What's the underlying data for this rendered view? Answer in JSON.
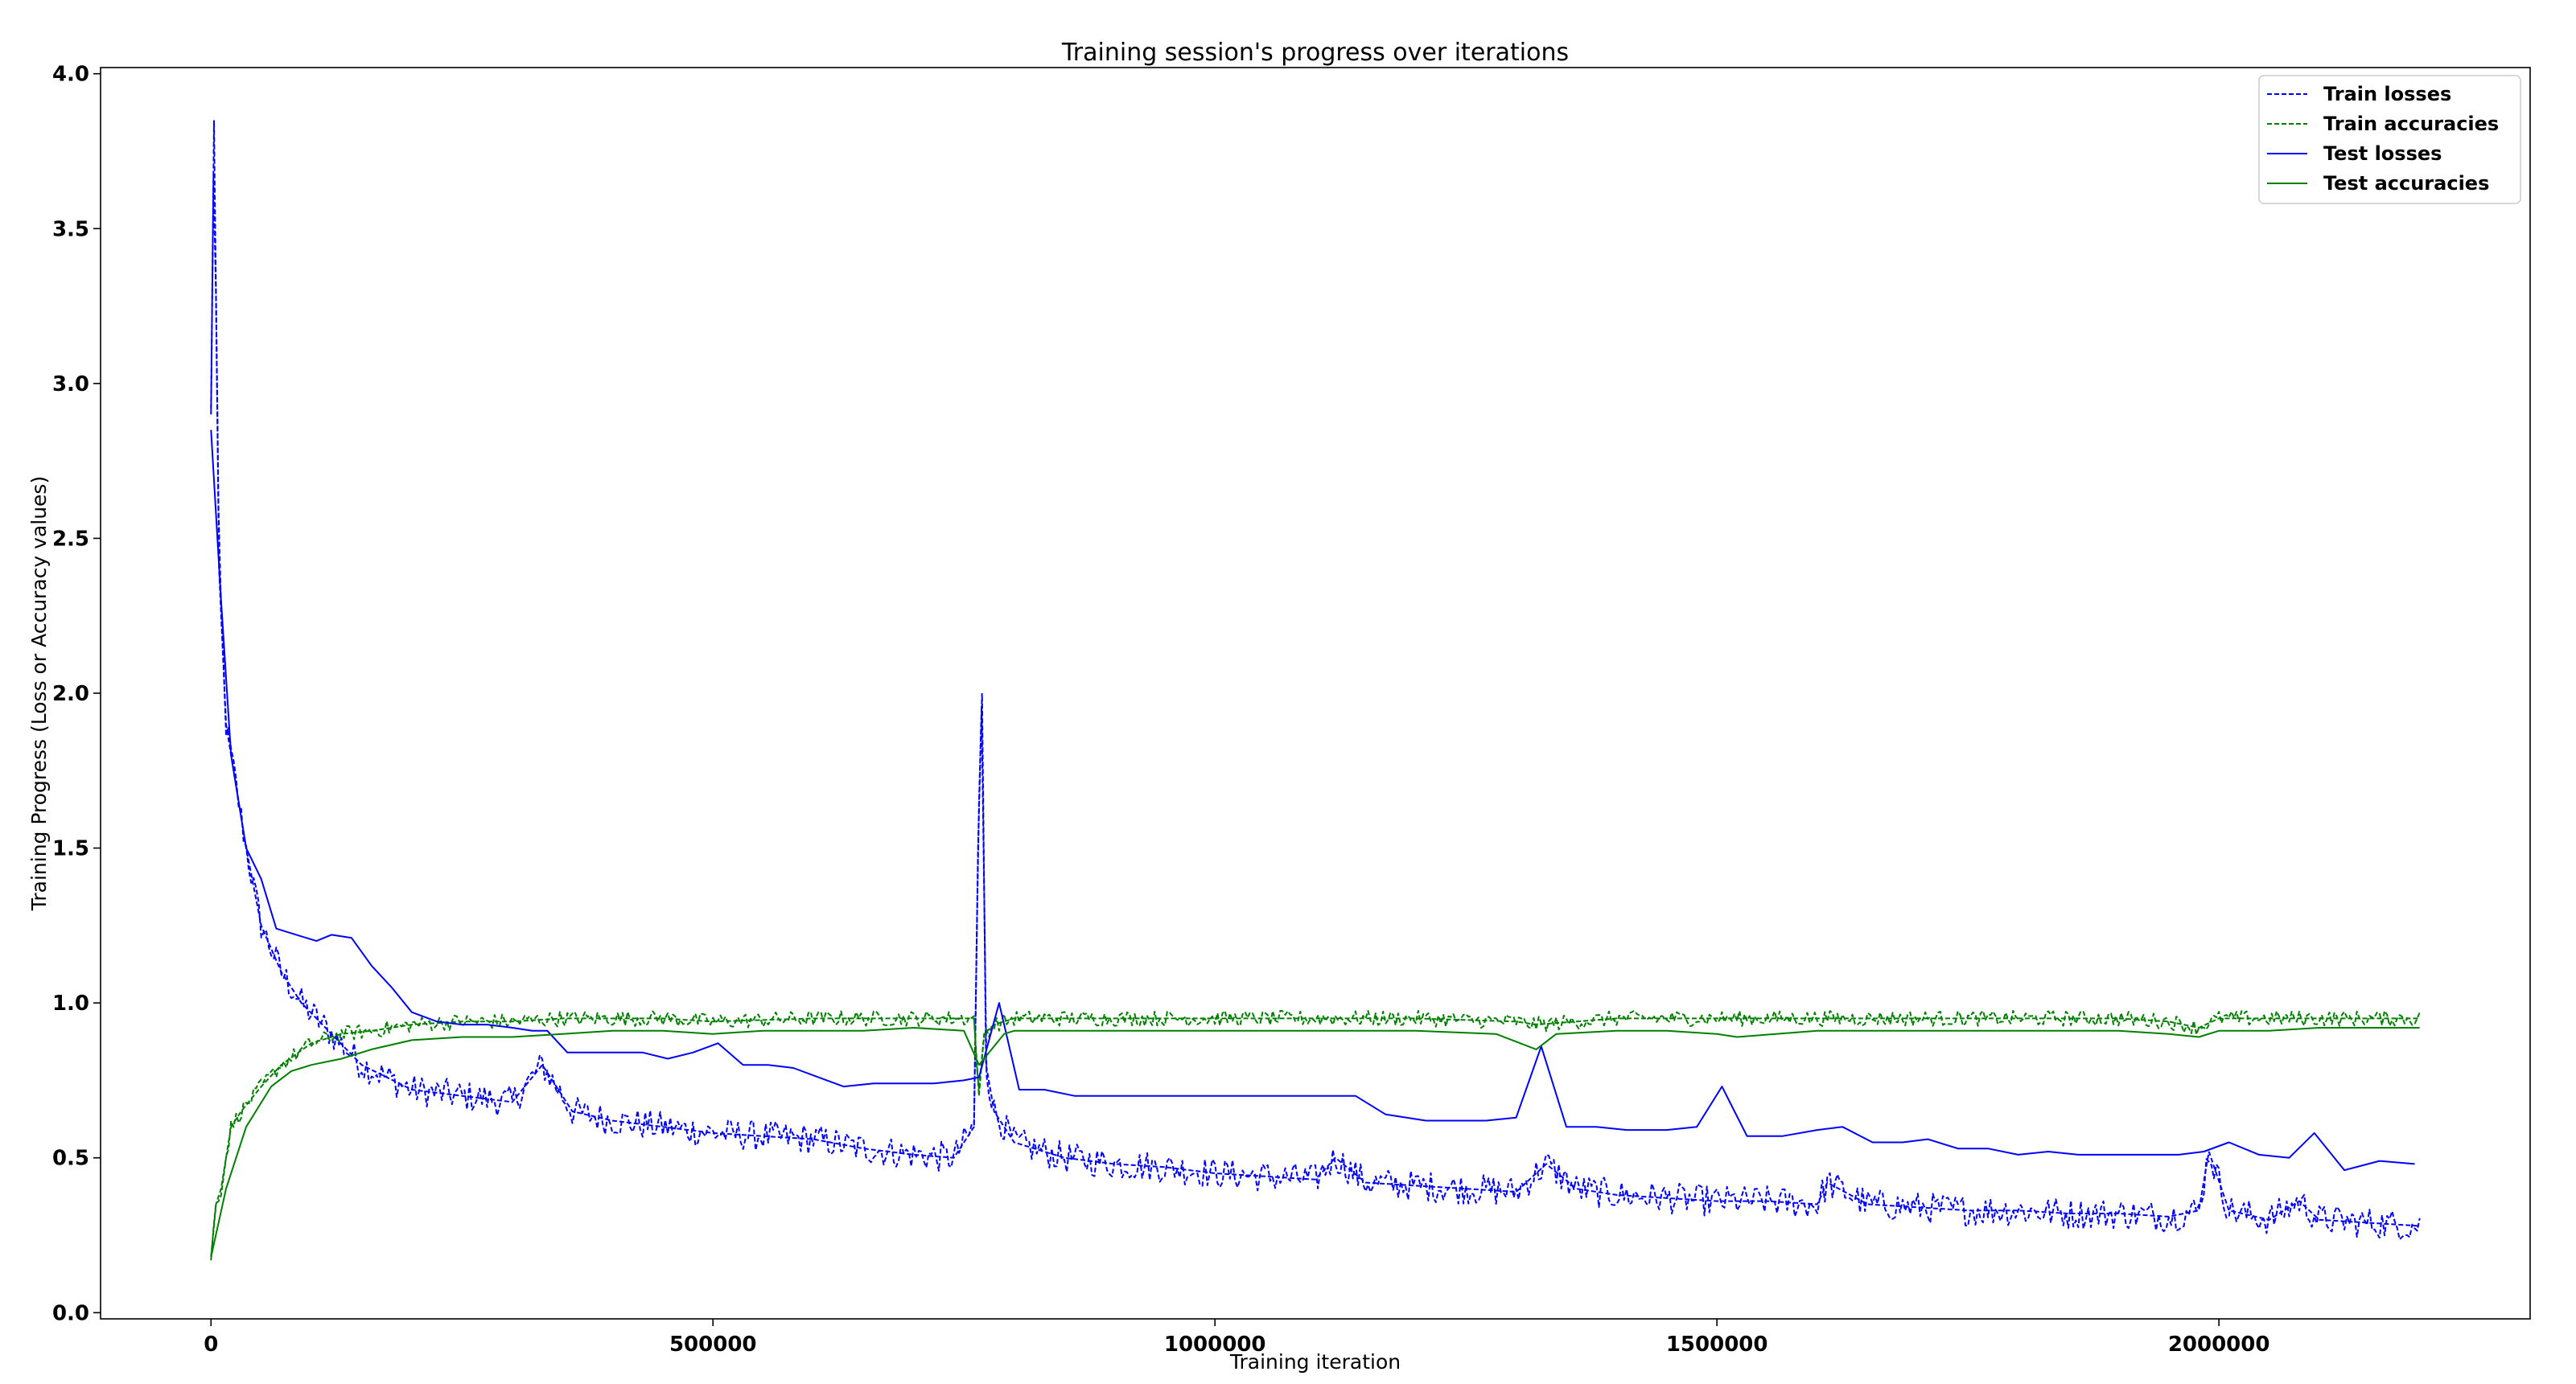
{
  "chart_data": {
    "type": "line",
    "title": "Training session's progress over iterations",
    "xlabel": "Training iteration",
    "ylabel": "Training Progress (Loss or Accuracy values)",
    "xlim": [
      -110000,
      2310000
    ],
    "ylim": [
      -0.02,
      4.02
    ],
    "xticks": [
      0,
      500000,
      1000000,
      1500000,
      2000000
    ],
    "yticks": [
      0.0,
      0.5,
      1.0,
      1.5,
      2.0,
      2.5,
      3.0,
      3.5,
      4.0
    ],
    "legend": "top-right",
    "grid": false,
    "series": [
      {
        "name": "Train losses",
        "color": "#0000ff",
        "style": "dashed",
        "jitter": 0.05,
        "x": [
          0,
          3000,
          8000,
          15000,
          25000,
          35000,
          50000,
          70000,
          90000,
          120000,
          150000,
          200000,
          250000,
          300000,
          330000,
          360000,
          400000,
          450000,
          500000,
          550000,
          600000,
          650000,
          700000,
          740000,
          760000,
          764000,
          768000,
          772000,
          780000,
          800000,
          850000,
          900000,
          950000,
          1000000,
          1050000,
          1100000,
          1120000,
          1150000,
          1200000,
          1250000,
          1300000,
          1330000,
          1360000,
          1400000,
          1450000,
          1500000,
          1550000,
          1600000,
          1610000,
          1650000,
          1700000,
          1750000,
          1800000,
          1850000,
          1900000,
          1950000,
          1980000,
          1990000,
          2010000,
          2050000,
          2080000,
          2100000,
          2150000,
          2200000
        ],
        "y": [
          2.9,
          3.85,
          2.4,
          1.9,
          1.7,
          1.5,
          1.25,
          1.1,
          1.0,
          0.9,
          0.8,
          0.72,
          0.7,
          0.68,
          0.8,
          0.65,
          0.62,
          0.6,
          0.58,
          0.57,
          0.56,
          0.53,
          0.51,
          0.5,
          0.6,
          1.5,
          2.0,
          0.8,
          0.65,
          0.55,
          0.5,
          0.48,
          0.47,
          0.45,
          0.44,
          0.43,
          0.5,
          0.42,
          0.41,
          0.4,
          0.39,
          0.48,
          0.4,
          0.38,
          0.37,
          0.36,
          0.36,
          0.35,
          0.42,
          0.35,
          0.34,
          0.33,
          0.33,
          0.32,
          0.32,
          0.31,
          0.33,
          0.52,
          0.33,
          0.3,
          0.36,
          0.3,
          0.29,
          0.28
        ]
      },
      {
        "name": "Train accuracies",
        "color": "#008000",
        "style": "dashed",
        "jitter": 0.025,
        "x": [
          0,
          5000,
          10000,
          20000,
          30000,
          50000,
          70000,
          100000,
          130000,
          160000,
          200000,
          250000,
          300000,
          350000,
          400000,
          450000,
          500000,
          600000,
          700000,
          760000,
          765000,
          770000,
          780000,
          800000,
          900000,
          1000000,
          1100000,
          1200000,
          1300000,
          1320000,
          1400000,
          1500000,
          1600000,
          1700000,
          1800000,
          1900000,
          1950000,
          1980000,
          2000000,
          2100000,
          2200000
        ],
        "y": [
          0.18,
          0.35,
          0.4,
          0.6,
          0.65,
          0.73,
          0.8,
          0.87,
          0.9,
          0.91,
          0.93,
          0.94,
          0.94,
          0.95,
          0.95,
          0.95,
          0.94,
          0.95,
          0.95,
          0.95,
          0.7,
          0.9,
          0.93,
          0.95,
          0.95,
          0.95,
          0.95,
          0.95,
          0.94,
          0.93,
          0.95,
          0.95,
          0.95,
          0.95,
          0.95,
          0.95,
          0.94,
          0.92,
          0.95,
          0.95,
          0.95
        ]
      },
      {
        "name": "Test losses",
        "color": "#0000ff",
        "style": "solid",
        "jitter": 0,
        "x": [
          0,
          10000,
          20000,
          35000,
          50000,
          65000,
          85000,
          105000,
          120000,
          140000,
          160000,
          180000,
          200000,
          225000,
          250000,
          275000,
          300000,
          320000,
          335000,
          355000,
          380000,
          405000,
          430000,
          455000,
          480000,
          505000,
          530000,
          555000,
          580000,
          605000,
          630000,
          660000,
          690000,
          720000,
          750000,
          765000,
          785000,
          805000,
          830000,
          860000,
          890000,
          930000,
          970000,
          1010000,
          1060000,
          1110000,
          1140000,
          1170000,
          1210000,
          1240000,
          1270000,
          1300000,
          1325000,
          1350000,
          1380000,
          1410000,
          1450000,
          1480000,
          1505000,
          1530000,
          1565000,
          1600000,
          1625000,
          1655000,
          1685000,
          1710000,
          1740000,
          1770000,
          1800000,
          1830000,
          1860000,
          1890000,
          1925000,
          1960000,
          1985000,
          2010000,
          2040000,
          2070000,
          2095000,
          2125000,
          2160000,
          2195000
        ],
        "y": [
          2.85,
          2.3,
          1.8,
          1.5,
          1.4,
          1.24,
          1.22,
          1.2,
          1.22,
          1.21,
          1.12,
          1.05,
          0.97,
          0.94,
          0.93,
          0.93,
          0.92,
          0.91,
          0.91,
          0.84,
          0.84,
          0.84,
          0.84,
          0.82,
          0.84,
          0.87,
          0.8,
          0.8,
          0.79,
          0.76,
          0.73,
          0.74,
          0.74,
          0.74,
          0.75,
          0.76,
          1.0,
          0.72,
          0.72,
          0.7,
          0.7,
          0.7,
          0.7,
          0.7,
          0.7,
          0.7,
          0.7,
          0.64,
          0.62,
          0.62,
          0.62,
          0.63,
          0.86,
          0.6,
          0.6,
          0.59,
          0.59,
          0.6,
          0.73,
          0.57,
          0.57,
          0.59,
          0.6,
          0.55,
          0.55,
          0.56,
          0.53,
          0.53,
          0.51,
          0.52,
          0.51,
          0.51,
          0.51,
          0.51,
          0.52,
          0.55,
          0.51,
          0.5,
          0.58,
          0.46,
          0.49,
          0.48
        ]
      },
      {
        "name": "Test accuracies",
        "color": "#008000",
        "style": "solid",
        "jitter": 0,
        "x": [
          0,
          15000,
          35000,
          60000,
          80000,
          100000,
          130000,
          160000,
          200000,
          250000,
          300000,
          350000,
          400000,
          450000,
          500000,
          550000,
          600000,
          650000,
          700000,
          750000,
          765000,
          790000,
          800000,
          850000,
          900000,
          1000000,
          1100000,
          1200000,
          1280000,
          1320000,
          1340000,
          1400000,
          1450000,
          1500000,
          1520000,
          1600000,
          1700000,
          1800000,
          1900000,
          1950000,
          1980000,
          2000000,
          2050000,
          2100000,
          2200000
        ],
        "y": [
          0.18,
          0.4,
          0.6,
          0.73,
          0.78,
          0.8,
          0.82,
          0.85,
          0.88,
          0.89,
          0.89,
          0.9,
          0.91,
          0.91,
          0.9,
          0.91,
          0.91,
          0.91,
          0.92,
          0.91,
          0.8,
          0.9,
          0.91,
          0.91,
          0.91,
          0.91,
          0.91,
          0.91,
          0.9,
          0.85,
          0.9,
          0.91,
          0.91,
          0.9,
          0.89,
          0.91,
          0.91,
          0.91,
          0.91,
          0.9,
          0.89,
          0.91,
          0.91,
          0.92,
          0.92
        ]
      }
    ]
  }
}
